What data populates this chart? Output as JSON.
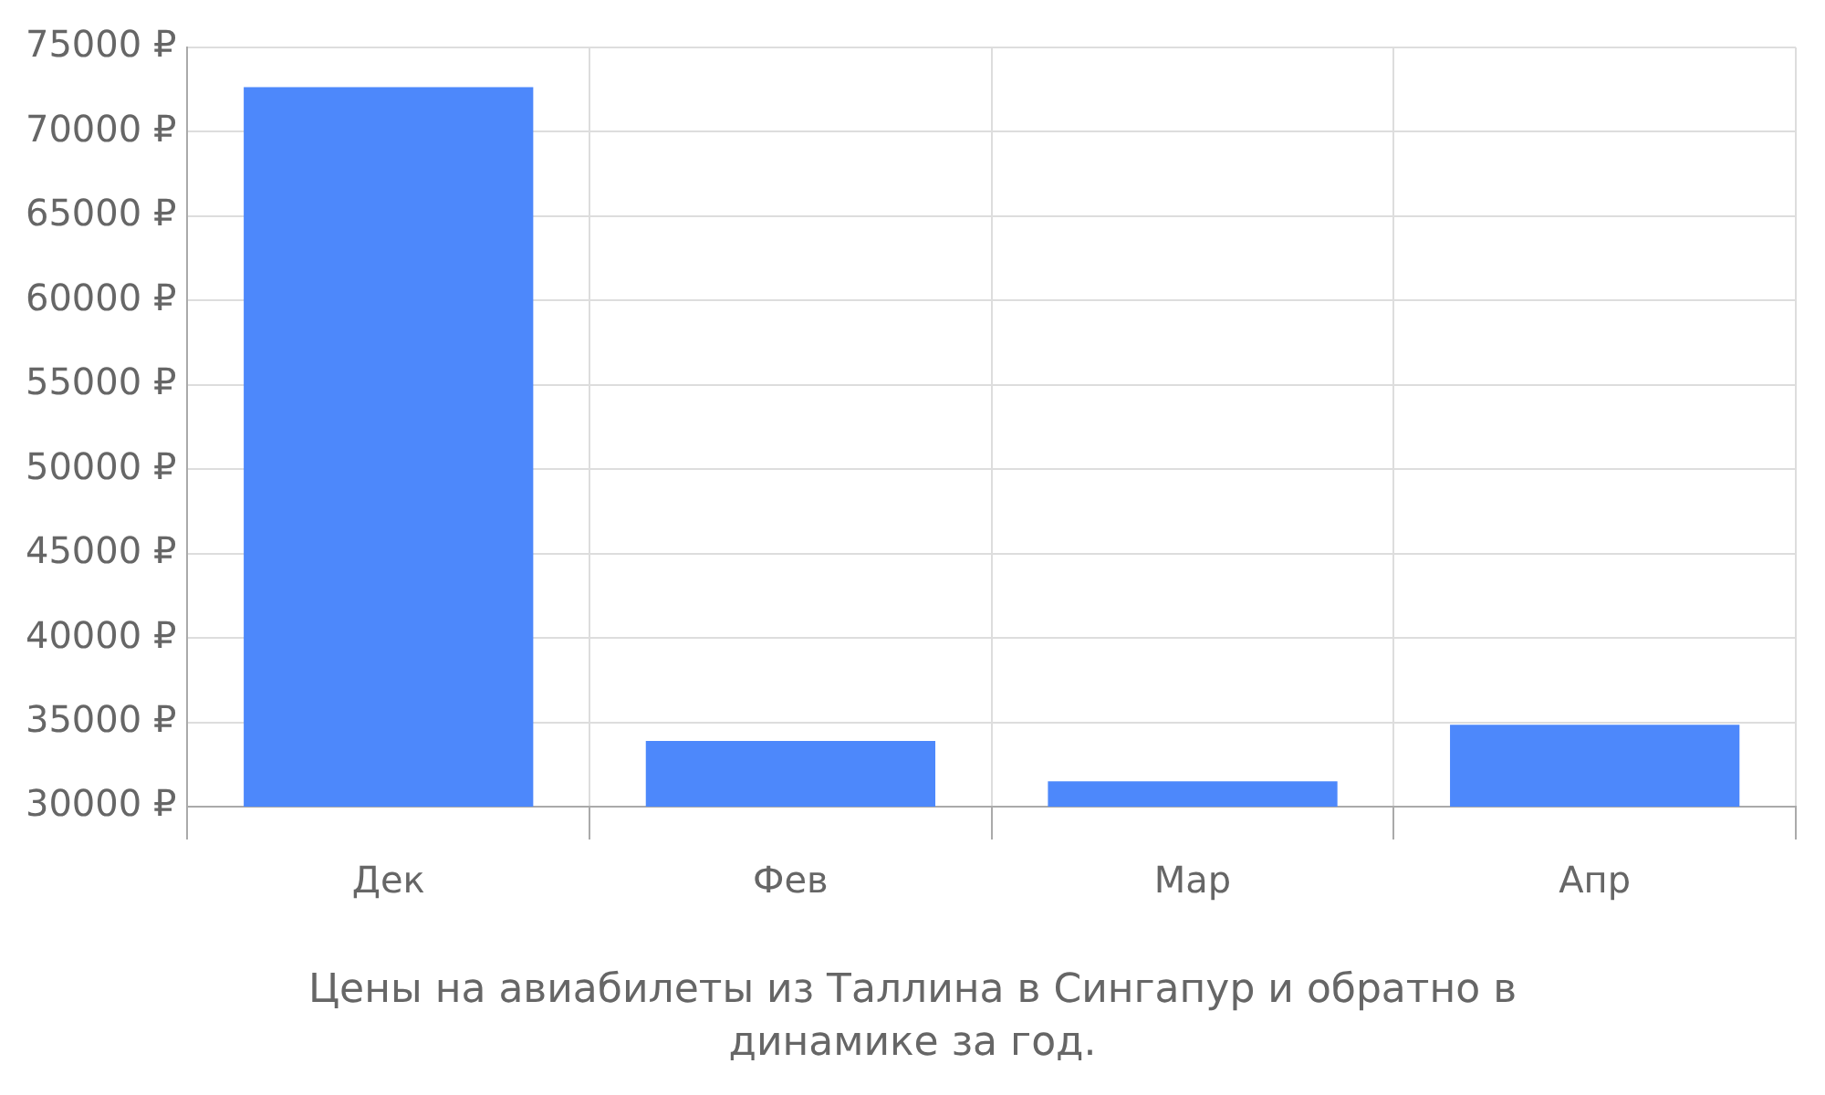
{
  "chart_data": {
    "type": "bar",
    "title": "Цены на авиабилеты из Таллина в Сингапур и обратно в динамике за год.",
    "categories": [
      "Дек",
      "Фев",
      "Мар",
      "Апр"
    ],
    "values": [
      72650,
      33900,
      31500,
      34850
    ],
    "color": "#4d88fb",
    "ylim": [
      30000,
      75000
    ],
    "yticks": [
      {
        "value": 30000,
        "label": "30000 ₽"
      },
      {
        "value": 35000,
        "label": "35000 ₽"
      },
      {
        "value": 40000,
        "label": "40000 ₽"
      },
      {
        "value": 45000,
        "label": "45000 ₽"
      },
      {
        "value": 50000,
        "label": "50000 ₽"
      },
      {
        "value": 55000,
        "label": "55000 ₽"
      },
      {
        "value": 60000,
        "label": "60000 ₽"
      },
      {
        "value": 65000,
        "label": "65000 ₽"
      },
      {
        "value": 70000,
        "label": "70000 ₽"
      },
      {
        "value": 75000,
        "label": "75000 ₽"
      }
    ],
    "grid": true,
    "legend": false
  }
}
